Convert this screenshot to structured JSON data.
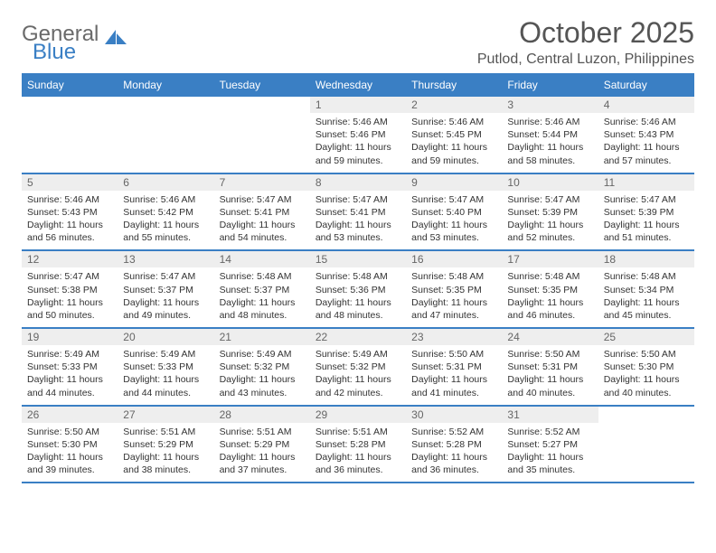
{
  "logo": {
    "general": "General",
    "blue": "Blue"
  },
  "title": "October 2025",
  "location": "Putlod, Central Luzon, Philippines",
  "colors": {
    "brand": "#3a7fc4",
    "header_bg": "#3a7fc4",
    "daynum_bg": "#eeeeee",
    "text": "#333333",
    "title_text": "#555555"
  },
  "weekdays": [
    "Sunday",
    "Monday",
    "Tuesday",
    "Wednesday",
    "Thursday",
    "Friday",
    "Saturday"
  ],
  "weeks": [
    [
      {
        "n": "",
        "sr": "",
        "ss": "",
        "dl": ""
      },
      {
        "n": "",
        "sr": "",
        "ss": "",
        "dl": ""
      },
      {
        "n": "",
        "sr": "",
        "ss": "",
        "dl": ""
      },
      {
        "n": "1",
        "sr": "Sunrise: 5:46 AM",
        "ss": "Sunset: 5:46 PM",
        "dl": "Daylight: 11 hours and 59 minutes."
      },
      {
        "n": "2",
        "sr": "Sunrise: 5:46 AM",
        "ss": "Sunset: 5:45 PM",
        "dl": "Daylight: 11 hours and 59 minutes."
      },
      {
        "n": "3",
        "sr": "Sunrise: 5:46 AM",
        "ss": "Sunset: 5:44 PM",
        "dl": "Daylight: 11 hours and 58 minutes."
      },
      {
        "n": "4",
        "sr": "Sunrise: 5:46 AM",
        "ss": "Sunset: 5:43 PM",
        "dl": "Daylight: 11 hours and 57 minutes."
      }
    ],
    [
      {
        "n": "5",
        "sr": "Sunrise: 5:46 AM",
        "ss": "Sunset: 5:43 PM",
        "dl": "Daylight: 11 hours and 56 minutes."
      },
      {
        "n": "6",
        "sr": "Sunrise: 5:46 AM",
        "ss": "Sunset: 5:42 PM",
        "dl": "Daylight: 11 hours and 55 minutes."
      },
      {
        "n": "7",
        "sr": "Sunrise: 5:47 AM",
        "ss": "Sunset: 5:41 PM",
        "dl": "Daylight: 11 hours and 54 minutes."
      },
      {
        "n": "8",
        "sr": "Sunrise: 5:47 AM",
        "ss": "Sunset: 5:41 PM",
        "dl": "Daylight: 11 hours and 53 minutes."
      },
      {
        "n": "9",
        "sr": "Sunrise: 5:47 AM",
        "ss": "Sunset: 5:40 PM",
        "dl": "Daylight: 11 hours and 53 minutes."
      },
      {
        "n": "10",
        "sr": "Sunrise: 5:47 AM",
        "ss": "Sunset: 5:39 PM",
        "dl": "Daylight: 11 hours and 52 minutes."
      },
      {
        "n": "11",
        "sr": "Sunrise: 5:47 AM",
        "ss": "Sunset: 5:39 PM",
        "dl": "Daylight: 11 hours and 51 minutes."
      }
    ],
    [
      {
        "n": "12",
        "sr": "Sunrise: 5:47 AM",
        "ss": "Sunset: 5:38 PM",
        "dl": "Daylight: 11 hours and 50 minutes."
      },
      {
        "n": "13",
        "sr": "Sunrise: 5:47 AM",
        "ss": "Sunset: 5:37 PM",
        "dl": "Daylight: 11 hours and 49 minutes."
      },
      {
        "n": "14",
        "sr": "Sunrise: 5:48 AM",
        "ss": "Sunset: 5:37 PM",
        "dl": "Daylight: 11 hours and 48 minutes."
      },
      {
        "n": "15",
        "sr": "Sunrise: 5:48 AM",
        "ss": "Sunset: 5:36 PM",
        "dl": "Daylight: 11 hours and 48 minutes."
      },
      {
        "n": "16",
        "sr": "Sunrise: 5:48 AM",
        "ss": "Sunset: 5:35 PM",
        "dl": "Daylight: 11 hours and 47 minutes."
      },
      {
        "n": "17",
        "sr": "Sunrise: 5:48 AM",
        "ss": "Sunset: 5:35 PM",
        "dl": "Daylight: 11 hours and 46 minutes."
      },
      {
        "n": "18",
        "sr": "Sunrise: 5:48 AM",
        "ss": "Sunset: 5:34 PM",
        "dl": "Daylight: 11 hours and 45 minutes."
      }
    ],
    [
      {
        "n": "19",
        "sr": "Sunrise: 5:49 AM",
        "ss": "Sunset: 5:33 PM",
        "dl": "Daylight: 11 hours and 44 minutes."
      },
      {
        "n": "20",
        "sr": "Sunrise: 5:49 AM",
        "ss": "Sunset: 5:33 PM",
        "dl": "Daylight: 11 hours and 44 minutes."
      },
      {
        "n": "21",
        "sr": "Sunrise: 5:49 AM",
        "ss": "Sunset: 5:32 PM",
        "dl": "Daylight: 11 hours and 43 minutes."
      },
      {
        "n": "22",
        "sr": "Sunrise: 5:49 AM",
        "ss": "Sunset: 5:32 PM",
        "dl": "Daylight: 11 hours and 42 minutes."
      },
      {
        "n": "23",
        "sr": "Sunrise: 5:50 AM",
        "ss": "Sunset: 5:31 PM",
        "dl": "Daylight: 11 hours and 41 minutes."
      },
      {
        "n": "24",
        "sr": "Sunrise: 5:50 AM",
        "ss": "Sunset: 5:31 PM",
        "dl": "Daylight: 11 hours and 40 minutes."
      },
      {
        "n": "25",
        "sr": "Sunrise: 5:50 AM",
        "ss": "Sunset: 5:30 PM",
        "dl": "Daylight: 11 hours and 40 minutes."
      }
    ],
    [
      {
        "n": "26",
        "sr": "Sunrise: 5:50 AM",
        "ss": "Sunset: 5:30 PM",
        "dl": "Daylight: 11 hours and 39 minutes."
      },
      {
        "n": "27",
        "sr": "Sunrise: 5:51 AM",
        "ss": "Sunset: 5:29 PM",
        "dl": "Daylight: 11 hours and 38 minutes."
      },
      {
        "n": "28",
        "sr": "Sunrise: 5:51 AM",
        "ss": "Sunset: 5:29 PM",
        "dl": "Daylight: 11 hours and 37 minutes."
      },
      {
        "n": "29",
        "sr": "Sunrise: 5:51 AM",
        "ss": "Sunset: 5:28 PM",
        "dl": "Daylight: 11 hours and 36 minutes."
      },
      {
        "n": "30",
        "sr": "Sunrise: 5:52 AM",
        "ss": "Sunset: 5:28 PM",
        "dl": "Daylight: 11 hours and 36 minutes."
      },
      {
        "n": "31",
        "sr": "Sunrise: 5:52 AM",
        "ss": "Sunset: 5:27 PM",
        "dl": "Daylight: 11 hours and 35 minutes."
      },
      {
        "n": "",
        "sr": "",
        "ss": "",
        "dl": ""
      }
    ]
  ]
}
